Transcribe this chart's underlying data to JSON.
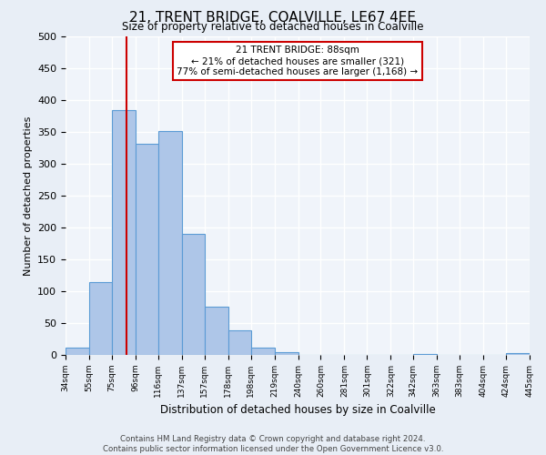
{
  "title": "21, TRENT BRIDGE, COALVILLE, LE67 4EE",
  "subtitle": "Size of property relative to detached houses in Coalville",
  "xlabel": "Distribution of detached houses by size in Coalville",
  "ylabel": "Number of detached properties",
  "bin_labels": [
    "34sqm",
    "55sqm",
    "75sqm",
    "96sqm",
    "116sqm",
    "137sqm",
    "157sqm",
    "178sqm",
    "198sqm",
    "219sqm",
    "240sqm",
    "260sqm",
    "281sqm",
    "301sqm",
    "322sqm",
    "342sqm",
    "363sqm",
    "383sqm",
    "404sqm",
    "424sqm",
    "445sqm"
  ],
  "bin_edges": [
    34,
    55,
    75,
    96,
    116,
    137,
    157,
    178,
    198,
    219,
    240,
    260,
    281,
    301,
    322,
    342,
    363,
    383,
    404,
    424,
    445
  ],
  "bar_heights": [
    11,
    115,
    385,
    331,
    352,
    190,
    76,
    38,
    11,
    5,
    0,
    0,
    0,
    0,
    0,
    1,
    0,
    0,
    0,
    3
  ],
  "bar_color": "#aec6e8",
  "bar_edge_color": "#5b9bd5",
  "vline_x": 88,
  "vline_color": "#cc0000",
  "annotation_title": "21 TRENT BRIDGE: 88sqm",
  "annotation_line1": "← 21% of detached houses are smaller (321)",
  "annotation_line2": "77% of semi-detached houses are larger (1,168) →",
  "annotation_box_color": "#cc0000",
  "ylim": [
    0,
    500
  ],
  "yticks": [
    0,
    50,
    100,
    150,
    200,
    250,
    300,
    350,
    400,
    450,
    500
  ],
  "footer_line1": "Contains HM Land Registry data © Crown copyright and database right 2024.",
  "footer_line2": "Contains public sector information licensed under the Open Government Licence v3.0.",
  "bg_color": "#e8eef6",
  "plot_bg_color": "#f0f4fa"
}
